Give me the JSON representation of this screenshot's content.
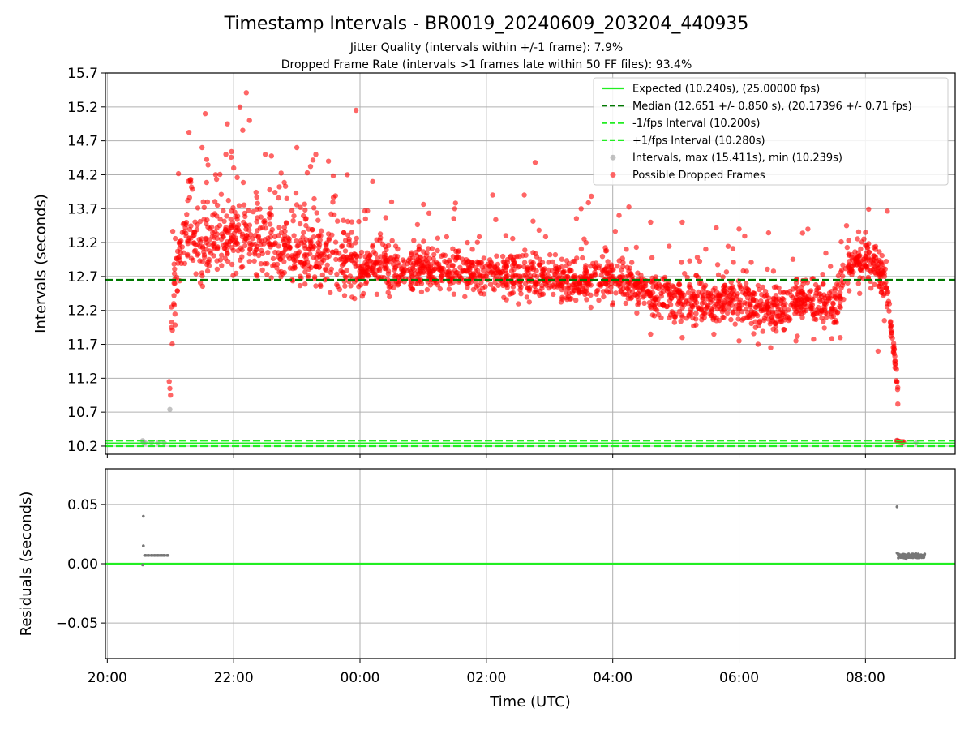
{
  "chart_data": [
    {
      "type": "scatter",
      "title": "Timestamp Intervals - BR0019_20240609_203204_440935",
      "subtitle_1": "Jitter Quality (intervals within +/-1 frame): 7.9%",
      "subtitle_2": "Dropped Frame Rate (intervals >1 frames late within 50 FF files): 93.4%",
      "ylabel": "Intervals (seconds)",
      "ylim": [
        10.08,
        15.7
      ],
      "yticks": [
        "10.2",
        "10.7",
        "11.2",
        "11.7",
        "12.2",
        "12.7",
        "13.2",
        "13.7",
        "14.2",
        "14.7",
        "15.2",
        "15.7"
      ],
      "xlim_hours": [
        19.97,
        33.42
      ],
      "grid": true,
      "legend_position": "upper right",
      "reference_lines": [
        {
          "label": "Expected (10.240s), (25.00000 fps)",
          "y": 10.24,
          "color": "#22ee22",
          "style": "solid"
        },
        {
          "label": "Median (12.651 +/- 0.850 s), (20.17396 +/- 0.71 fps)",
          "y": 12.651,
          "color": "#007700",
          "style": "dashed"
        },
        {
          "label": "-1/fps Interval (10.200s)",
          "y": 10.2,
          "color": "#22ee22",
          "style": "dashed"
        },
        {
          "label": "+1/fps Interval (10.280s)",
          "y": 10.28,
          "color": "#22ee22",
          "style": "dashed"
        }
      ],
      "series": [
        {
          "name": "Intervals, max (15.411s), min (10.239s)",
          "color": "#999999",
          "points": [
            [
              20.56,
              10.28
            ],
            [
              20.57,
              10.25
            ],
            [
              20.6,
              10.247
            ],
            [
              20.7,
              10.247
            ],
            [
              20.8,
              10.247
            ],
            [
              20.9,
              10.247
            ],
            [
              20.99,
              10.74
            ],
            [
              32.5,
              10.28
            ],
            [
              32.6,
              10.249
            ],
            [
              32.8,
              10.248
            ]
          ]
        },
        {
          "name": "Possible Dropped Frames",
          "color": "#ff0000",
          "trend": [
            [
              21.0,
              11.8
            ],
            [
              21.1,
              12.8
            ],
            [
              21.25,
              13.3
            ],
            [
              21.5,
              13.1
            ],
            [
              22.0,
              13.25
            ],
            [
              22.5,
              13.15
            ],
            [
              23.0,
              13.0
            ],
            [
              23.5,
              12.95
            ],
            [
              0.0,
              12.85
            ],
            [
              1.0,
              12.8
            ],
            [
              2.0,
              12.75
            ],
            [
              3.0,
              12.7
            ],
            [
              3.5,
              12.6
            ],
            [
              4.0,
              12.65
            ],
            [
              4.5,
              12.5
            ],
            [
              5.0,
              12.35
            ],
            [
              5.5,
              12.3
            ],
            [
              6.0,
              12.35
            ],
            [
              6.5,
              12.2
            ],
            [
              7.0,
              12.35
            ],
            [
              7.5,
              12.2
            ],
            [
              7.75,
              12.9
            ],
            [
              8.0,
              12.95
            ],
            [
              8.2,
              12.85
            ],
            [
              8.32,
              12.6
            ],
            [
              8.4,
              12.0
            ],
            [
              8.5,
              11.2
            ],
            [
              8.53,
              10.65
            ]
          ],
          "outliers": [
            [
              20.98,
              11.15
            ],
            [
              20.99,
              11.05
            ],
            [
              21.0,
              10.95
            ],
            [
              21.5,
              14.6
            ],
            [
              21.55,
              15.1
            ],
            [
              21.9,
              14.95
            ],
            [
              22.1,
              15.2
            ],
            [
              22.2,
              15.41
            ],
            [
              22.25,
              15.0
            ],
            [
              22.0,
              14.3
            ],
            [
              22.5,
              14.5
            ],
            [
              23.0,
              14.6
            ],
            [
              23.3,
              14.5
            ],
            [
              23.5,
              14.4
            ],
            [
              23.8,
              14.2
            ],
            [
              0.2,
              14.1
            ],
            [
              0.5,
              13.8
            ],
            [
              1.5,
              13.7
            ],
            [
              2.1,
              13.9
            ],
            [
              2.6,
              13.9
            ],
            [
              3.5,
              13.7
            ],
            [
              4.1,
              13.6
            ],
            [
              4.6,
              13.5
            ],
            [
              5.1,
              13.5
            ],
            [
              6.0,
              13.4
            ],
            [
              7.7,
              13.45
            ],
            [
              8.0,
              13.35
            ],
            [
              4.6,
              11.85
            ],
            [
              5.1,
              11.8
            ],
            [
              5.6,
              11.85
            ],
            [
              6.0,
              11.75
            ],
            [
              6.3,
              11.7
            ],
            [
              6.5,
              11.65
            ],
            [
              6.9,
              11.75
            ],
            [
              7.6,
              11.8
            ],
            [
              8.2,
              11.6
            ],
            [
              8.3,
              12.05
            ]
          ],
          "tail": [
            [
              8.5,
              10.28
            ],
            [
              8.52,
              10.27
            ],
            [
              8.54,
              10.26
            ],
            [
              8.56,
              10.26
            ],
            [
              8.58,
              10.255
            ],
            [
              8.6,
              10.26
            ]
          ]
        }
      ]
    },
    {
      "type": "scatter",
      "xlabel": "Time (UTC)",
      "ylabel": "Residuals (seconds)",
      "ylim": [
        -0.08,
        0.08
      ],
      "yticks": [
        "0.05",
        "0.00",
        "−0.05"
      ],
      "ytick_values": [
        0.05,
        0.0,
        -0.05
      ],
      "xticks": [
        "20:00",
        "22:00",
        "00:00",
        "02:00",
        "04:00",
        "06:00",
        "08:00"
      ],
      "xtick_hours": [
        20,
        22,
        24,
        26,
        28,
        30,
        32
      ],
      "grid": true,
      "reference_line": {
        "y": 0.0,
        "color": "#22ee22"
      },
      "series": [
        {
          "color": "#777777",
          "points": [
            [
              20.57,
              0.04
            ],
            [
              20.57,
              0.015
            ],
            [
              20.56,
              -0.001
            ],
            [
              20.6,
              0.007
            ],
            [
              20.65,
              0.007
            ],
            [
              20.7,
              0.007
            ],
            [
              20.75,
              0.007
            ],
            [
              20.8,
              0.007
            ],
            [
              20.85,
              0.007
            ],
            [
              20.9,
              0.007
            ],
            [
              20.95,
              0.007
            ],
            [
              32.5,
              0.048
            ],
            [
              32.5,
              0.009
            ],
            [
              32.55,
              0.006
            ],
            [
              32.6,
              0.008
            ],
            [
              32.65,
              0.005
            ],
            [
              32.7,
              0.007
            ],
            [
              32.75,
              0.006
            ],
            [
              32.8,
              0.008
            ],
            [
              32.85,
              0.005
            ],
            [
              32.9,
              0.007
            ]
          ]
        }
      ]
    }
  ]
}
